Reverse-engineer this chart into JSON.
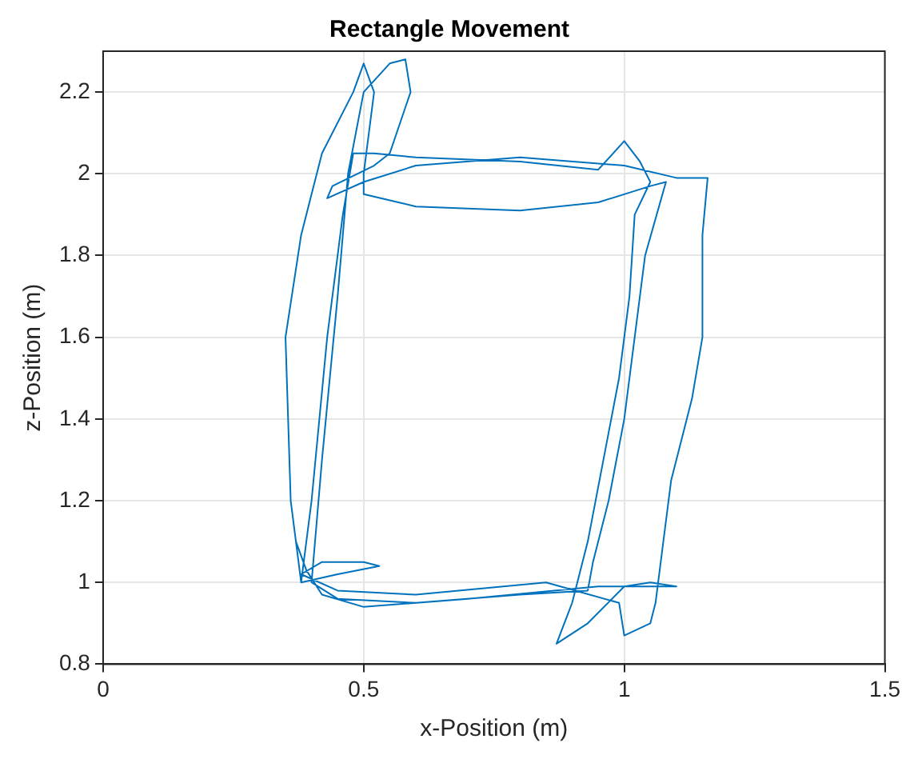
{
  "chart_data": {
    "type": "line",
    "title": "Rectangle Movement",
    "xlabel": "x-Position (m)",
    "ylabel": "z-Position (m)",
    "xlim": [
      0,
      1.5
    ],
    "xticks": [
      0,
      0.5,
      1,
      1.5
    ],
    "ylim": [
      0.8,
      2.3
    ],
    "yticks": [
      0.8,
      1,
      1.2,
      1.4,
      1.6,
      1.8,
      2,
      2.2
    ],
    "grid": true,
    "marker": "none",
    "line_style": "solid",
    "series": [
      {
        "color": "#0072bd",
        "x": [
          0.38,
          0.36,
          0.35,
          0.38,
          0.42,
          0.48,
          0.5,
          0.52,
          0.5,
          0.5,
          0.6,
          0.8,
          0.95,
          1.05,
          1.08,
          1.04,
          1.02,
          1.0,
          0.97,
          0.94,
          0.93,
          0.8,
          0.6,
          0.45,
          0.4,
          0.42,
          0.45,
          0.47,
          0.5,
          0.55,
          0.58,
          0.59,
          0.55,
          0.52,
          0.44,
          0.43,
          0.5,
          0.6,
          0.8,
          1.0,
          1.1,
          1.16,
          1.15,
          1.15,
          1.13,
          1.09,
          1.07,
          1.06,
          1.05,
          1.0,
          0.99,
          0.85,
          0.6,
          0.45,
          0.38,
          0.42,
          0.5,
          0.53,
          0.45,
          0.38,
          0.4,
          0.43,
          0.46,
          0.48,
          0.52,
          0.6,
          0.8,
          0.95,
          1.0,
          1.03,
          1.05,
          1.02,
          1.01,
          0.99,
          0.96,
          0.93,
          0.9,
          0.87,
          0.93,
          1.0,
          1.05,
          1.1,
          0.95,
          0.7,
          0.5,
          0.42,
          0.39,
          0.37
        ],
        "values": [
          1.0,
          1.2,
          1.6,
          1.85,
          2.05,
          2.2,
          2.27,
          2.2,
          2.0,
          1.95,
          1.92,
          1.91,
          1.93,
          1.97,
          1.98,
          1.8,
          1.6,
          1.4,
          1.2,
          1.05,
          0.98,
          0.97,
          0.95,
          0.96,
          1.0,
          1.3,
          1.7,
          2.0,
          2.2,
          2.27,
          2.28,
          2.2,
          2.05,
          2.02,
          1.97,
          1.94,
          1.98,
          2.02,
          2.04,
          2.02,
          1.99,
          1.99,
          1.85,
          1.6,
          1.45,
          1.25,
          1.05,
          0.95,
          0.9,
          0.87,
          0.95,
          1.0,
          0.97,
          0.98,
          1.02,
          1.05,
          1.05,
          1.04,
          1.02,
          1.0,
          1.2,
          1.6,
          1.9,
          2.05,
          2.05,
          2.04,
          2.03,
          2.01,
          2.08,
          2.03,
          1.98,
          1.9,
          1.7,
          1.5,
          1.3,
          1.1,
          0.95,
          0.85,
          0.9,
          0.99,
          1.0,
          0.99,
          0.99,
          0.96,
          0.94,
          0.97,
          1.03,
          1.1
        ]
      }
    ]
  }
}
